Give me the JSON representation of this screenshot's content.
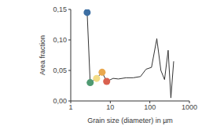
{
  "chart_data": {
    "type": "line",
    "x_label": "Grain size (diameter) in µm",
    "y_label": "Area fraction",
    "log": "x",
    "grid": false,
    "color": "#333333",
    "x": [
      2.6,
      3.1,
      4.5,
      6.2,
      8.1,
      11.8,
      16,
      25,
      38,
      58,
      80,
      110,
      150,
      190,
      235,
      290,
      340,
      400
    ],
    "values": [
      0.145,
      0.03,
      0.037,
      0.047,
      0.032,
      0.037,
      0.036,
      0.038,
      0.038,
      0.04,
      0.052,
      0.055,
      0.102,
      0.05,
      0.035,
      0.083,
      0.005,
      0.065
    ],
    "markers": {
      "marker": "circle",
      "x": [
        2.6,
        3.1,
        4.5,
        6.2,
        8.1
      ],
      "values": [
        0.145,
        0.03,
        0.037,
        0.047,
        0.032
      ],
      "colors": [
        "#3d6fa3",
        "#4f9a72",
        "#f3dc86",
        "#e9a84e",
        "#d9614f"
      ]
    },
    "xlim": [
      1,
      1000
    ],
    "xticks": [
      1,
      10,
      100,
      1000
    ],
    "ylim": [
      0,
      0.15
    ],
    "yticks": [
      {
        "value": 0,
        "label": "0,00"
      },
      {
        "value": 0.05,
        "label": "0,05"
      },
      {
        "value": 0.1,
        "label": "0,10"
      },
      {
        "value": 0.15,
        "label": "0,15"
      }
    ]
  }
}
